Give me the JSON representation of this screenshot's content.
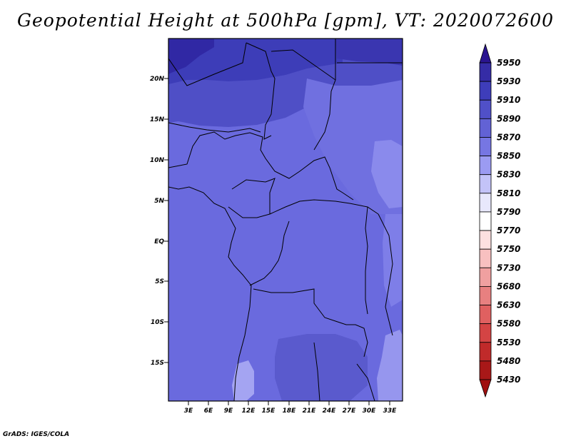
{
  "title": "Geopotential Height at 500hPa [gpm], VT: 2020072600",
  "footer": "GrADS: IGES/COLA",
  "map": {
    "variable": "Geopotential Height at 500hPa",
    "units": "gpm",
    "valid_time": "2020072600",
    "region": "Central Africa",
    "lat_range": [
      -20,
      25
    ],
    "lon_range": [
      0,
      35
    ],
    "lat_ticks": [
      "20N",
      "15N",
      "10N",
      "5N",
      "EQ",
      "5S",
      "10S",
      "15S"
    ],
    "lon_ticks": [
      "3E",
      "6E",
      "9E",
      "12E",
      "15E",
      "18E",
      "21E",
      "24E",
      "27E",
      "30E",
      "33E"
    ]
  },
  "legend": {
    "levels": [
      {
        "label": "5950",
        "color": "#2e1b96"
      },
      {
        "label": "5930",
        "color": "#352ca6"
      },
      {
        "label": "5910",
        "color": "#3e3dba"
      },
      {
        "label": "5890",
        "color": "#5050c8"
      },
      {
        "label": "5870",
        "color": "#6262d5"
      },
      {
        "label": "5850",
        "color": "#7676e3"
      },
      {
        "label": "5830",
        "color": "#9b9bf2"
      },
      {
        "label": "5810",
        "color": "#c3c3f8"
      },
      {
        "label": "5790",
        "color": "#e8e8fc"
      },
      {
        "label": "5770",
        "color": "#ffffff"
      },
      {
        "label": "5750",
        "color": "#fde0e0"
      },
      {
        "label": "5730",
        "color": "#f8c0c0"
      },
      {
        "label": "5680",
        "color": "#f0a0a0"
      },
      {
        "label": "5630",
        "color": "#e88080"
      },
      {
        "label": "5580",
        "color": "#e06060"
      },
      {
        "label": "5530",
        "color": "#d44444"
      },
      {
        "label": "5480",
        "color": "#c02a2a"
      },
      {
        "label": "5430",
        "color": "#a81818"
      }
    ],
    "top_arrow_color": "#2a1490",
    "bottom_arrow_color": "#a01010"
  }
}
